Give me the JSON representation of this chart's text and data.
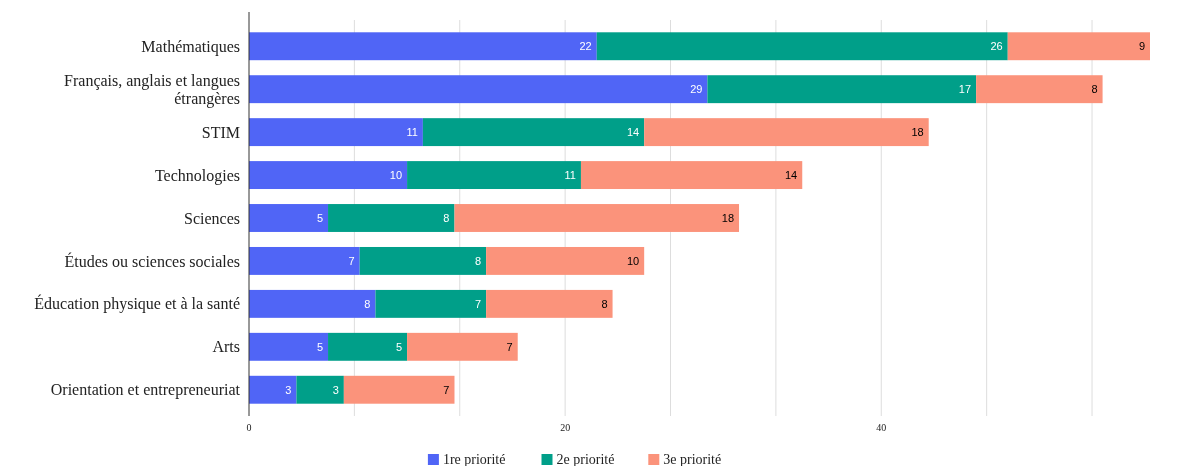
{
  "chart_data": {
    "type": "bar",
    "orientation": "horizontal",
    "stacked": true,
    "categories": [
      "Mathématiques",
      "Français, anglais et langues étrangères",
      "STIM",
      "Technologies",
      "Sciences",
      "Études ou sciences sociales",
      "Éducation physique et à la santé",
      "Arts",
      "Orientation et entrepreneuriat"
    ],
    "series": [
      {
        "name": "1re priorité",
        "color": "#5065f6",
        "values": [
          22,
          29,
          11,
          10,
          5,
          7,
          8,
          5,
          3
        ]
      },
      {
        "name": "2e priorité",
        "color": "#009f89",
        "values": [
          26,
          17,
          14,
          11,
          8,
          8,
          7,
          5,
          3
        ]
      },
      {
        "name": "3e priorité",
        "color": "#fb937b",
        "values": [
          9,
          8,
          18,
          14,
          18,
          10,
          8,
          7,
          7
        ]
      }
    ],
    "xlim": [
      0,
      57
    ],
    "xticks": [
      0,
      {
        "value": 6.667,
        "label": null
      },
      {
        "value": 13.333,
        "label": null
      },
      20,
      {
        "value": 26.667,
        "label": null
      },
      {
        "value": 33.333,
        "label": null
      },
      40,
      {
        "value": 46.667,
        "label": null
      },
      {
        "value": 53.333,
        "label": null
      }
    ],
    "grid": "x",
    "data_labels": true,
    "legend": "bottom"
  }
}
